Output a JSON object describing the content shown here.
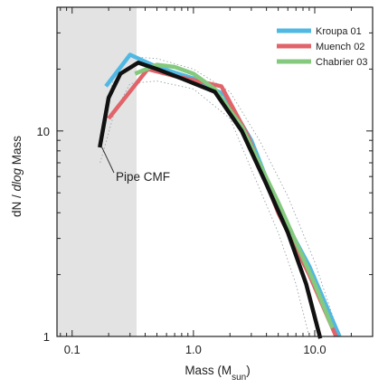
{
  "chart_data": {
    "type": "line",
    "xscale": "log",
    "yscale": "log",
    "xlim": [
      0.075,
      30
    ],
    "ylim": [
      1,
      40
    ],
    "xlabel": "Mass (M",
    "xlabel_sub": "sun",
    "xlabel_close": ")",
    "ylabel_dN": "dN / ",
    "ylabel_dlog": "dlog",
    "ylabel_mass": " Mass",
    "x_ticks": [
      {
        "value": 0.1,
        "label": "0.1"
      },
      {
        "value": 1.0,
        "label": "1.0"
      },
      {
        "value": 10.0,
        "label": "10.0"
      }
    ],
    "y_ticks": [
      {
        "value": 1,
        "label": "1"
      },
      {
        "value": 10,
        "label": "10"
      }
    ],
    "shaded_region": {
      "x0": 0.075,
      "x1": 0.34,
      "color": "#e3e3e3"
    },
    "legend_position": "top-right",
    "series": [
      {
        "name": "Kroupa 01",
        "color": "#4fb8e3",
        "points": [
          [
            0.19,
            16.5
          ],
          [
            0.3,
            23.5
          ],
          [
            0.5,
            20.5
          ],
          [
            1.0,
            18.0
          ],
          [
            1.8,
            15.0
          ],
          [
            3.0,
            9.0
          ],
          [
            5.0,
            4.2
          ],
          [
            9.0,
            2.2
          ],
          [
            16.0,
            1.0
          ]
        ]
      },
      {
        "name": "Muench 02",
        "color": "#e0646a",
        "points": [
          [
            0.2,
            11.5
          ],
          [
            0.42,
            20.0
          ],
          [
            0.7,
            18.5
          ],
          [
            1.7,
            16.5
          ],
          [
            2.8,
            9.5
          ],
          [
            5.0,
            4.0
          ],
          [
            9.0,
            2.0
          ],
          [
            15.0,
            1.0
          ]
        ]
      },
      {
        "name": "Chabrier 03",
        "color": "#84c97d",
        "points": [
          [
            0.33,
            19.0
          ],
          [
            0.5,
            21.0
          ],
          [
            0.7,
            20.5
          ],
          [
            1.0,
            19.0
          ],
          [
            1.5,
            16.0
          ],
          [
            2.5,
            10.5
          ],
          [
            5.0,
            4.5
          ],
          [
            10.0,
            1.8
          ],
          [
            14.0,
            1.1
          ]
        ]
      }
    ],
    "cmf": {
      "name": "Pipe CMF",
      "color": "#111111",
      "points": [
        [
          0.17,
          8.5
        ],
        [
          0.2,
          14.5
        ],
        [
          0.25,
          19.0
        ],
        [
          0.35,
          21.5
        ],
        [
          0.5,
          20.0
        ],
        [
          0.8,
          18.0
        ],
        [
          1.5,
          15.5
        ],
        [
          2.5,
          10.0
        ],
        [
          4.0,
          5.5
        ],
        [
          6.0,
          3.2
        ],
        [
          8.5,
          1.8
        ],
        [
          11.0,
          1.0
        ]
      ]
    },
    "cmf_upper": [
      [
        0.17,
        9.5
      ],
      [
        0.22,
        18.0
      ],
      [
        0.3,
        23.0
      ],
      [
        0.5,
        22.5
      ],
      [
        1.0,
        20.0
      ],
      [
        2.0,
        15.5
      ],
      [
        3.5,
        9.0
      ],
      [
        6.0,
        4.8
      ],
      [
        10.0,
        2.3
      ],
      [
        16.0,
        1.0
      ]
    ],
    "cmf_lower": [
      [
        0.17,
        7.0
      ],
      [
        0.22,
        12.0
      ],
      [
        0.3,
        17.0
      ],
      [
        0.5,
        17.5
      ],
      [
        1.0,
        16.0
      ],
      [
        2.0,
        11.5
      ],
      [
        3.0,
        6.5
      ],
      [
        5.0,
        3.2
      ],
      [
        7.0,
        1.8
      ],
      [
        9.0,
        1.0
      ]
    ],
    "annotation": {
      "label": "Pipe CMF",
      "x": 0.17,
      "y": 8.5
    }
  }
}
